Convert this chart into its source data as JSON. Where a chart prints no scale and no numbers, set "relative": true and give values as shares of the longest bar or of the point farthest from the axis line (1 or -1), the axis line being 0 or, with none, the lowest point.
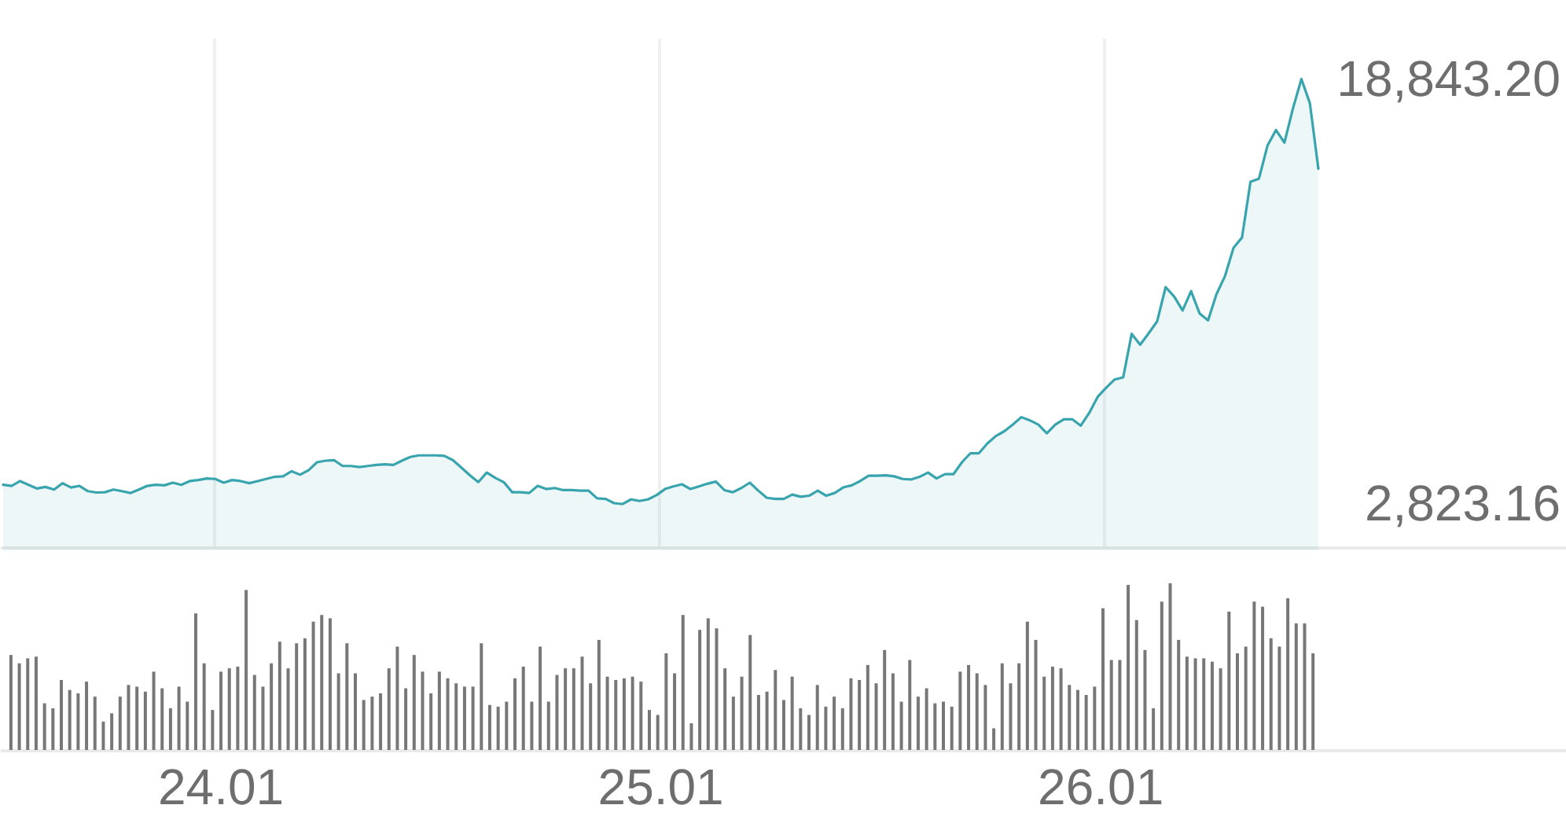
{
  "chart_data": [
    {
      "type": "area",
      "x": [
        "--01-23T12:35:00",
        "--01-23T13:02:30",
        "--01-23T13:30:00",
        "--01-23T13:57:30",
        "--01-23T14:25:00",
        "--01-23T14:52:30",
        "--01-23T15:20:00",
        "--01-23T15:47:30",
        "--01-23T16:15:00",
        "--01-23T16:42:30",
        "--01-23T17:10:00",
        "--01-23T17:37:30",
        "--01-23T18:05:00",
        "--01-23T18:32:30",
        "--01-23T19:00:00",
        "--01-23T19:27:30",
        "--01-23T19:55:00",
        "--01-23T20:22:30",
        "--01-23T20:50:00",
        "--01-23T21:17:30",
        "--01-23T21:45:00",
        "--01-23T22:12:30",
        "--01-23T22:40:00",
        "--01-23T23:07:30",
        "--01-23T23:35:00",
        "--01-24T00:02:30",
        "--01-24T00:30:00",
        "--01-24T00:57:30",
        "--01-24T01:25:00",
        "--01-24T01:52:30",
        "--01-24T02:20:00",
        "--01-24T02:47:30",
        "--01-24T03:15:00",
        "--01-24T03:42:30",
        "--01-24T04:10:00",
        "--01-24T04:37:30",
        "--01-24T05:05:00",
        "--01-24T05:32:30",
        "--01-24T06:00:00",
        "--01-24T06:27:30",
        "--01-24T06:55:00",
        "--01-24T07:22:30",
        "--01-24T07:50:00",
        "--01-24T08:17:30",
        "--01-24T08:45:00",
        "--01-24T09:12:30",
        "--01-24T09:40:00",
        "--01-24T10:07:30",
        "--01-24T10:35:00",
        "--01-24T11:02:30",
        "--01-24T11:30:00",
        "--01-24T11:57:30",
        "--01-24T12:25:00",
        "--01-24T12:52:30",
        "--01-24T13:20:00",
        "--01-24T13:47:30",
        "--01-24T14:15:00",
        "--01-24T14:42:30",
        "--01-24T15:10:00",
        "--01-24T15:37:30",
        "--01-24T16:05:00",
        "--01-24T16:32:30",
        "--01-24T17:00:00",
        "--01-24T17:27:30",
        "--01-24T17:55:00",
        "--01-24T18:22:30",
        "--01-24T18:50:00",
        "--01-24T19:17:30",
        "--01-24T19:45:00",
        "--01-24T20:12:30",
        "--01-24T20:40:00",
        "--01-24T21:07:30",
        "--01-24T21:35:00",
        "--01-24T22:02:30",
        "--01-24T22:30:00",
        "--01-24T22:57:30",
        "--01-24T23:25:00",
        "--01-24T23:52:30",
        "--01-25T00:20:00",
        "--01-25T00:47:30",
        "--01-25T01:15:00",
        "--01-25T01:42:30",
        "--01-25T02:10:00",
        "--01-25T02:37:30",
        "--01-25T03:05:00",
        "--01-25T03:32:30",
        "--01-25T04:00:00",
        "--01-25T04:27:30",
        "--01-25T04:55:00",
        "--01-25T05:22:30",
        "--01-25T05:50:00",
        "--01-25T06:17:30",
        "--01-25T06:45:00",
        "--01-25T07:12:30",
        "--01-25T07:40:00",
        "--01-25T08:07:30",
        "--01-25T08:35:00",
        "--01-25T09:02:30",
        "--01-25T09:30:00",
        "--01-25T09:57:30",
        "--01-25T10:25:00",
        "--01-25T10:52:30",
        "--01-25T11:20:00",
        "--01-25T11:47:30",
        "--01-25T12:15:00",
        "--01-25T12:42:30",
        "--01-25T13:10:00",
        "--01-25T13:37:30",
        "--01-25T14:05:00",
        "--01-25T14:32:30",
        "--01-25T15:00:00",
        "--01-25T15:27:30",
        "--01-25T15:55:00",
        "--01-25T16:22:30",
        "--01-25T16:50:00",
        "--01-25T17:17:30",
        "--01-25T17:45:00",
        "--01-25T18:12:30",
        "--01-25T18:40:00",
        "--01-25T19:07:30",
        "--01-25T19:35:00",
        "--01-25T20:02:30",
        "--01-25T20:30:00",
        "--01-25T20:57:30",
        "--01-25T21:25:00",
        "--01-25T21:52:30",
        "--01-25T22:20:00",
        "--01-25T22:47:30",
        "--01-25T23:15:00",
        "--01-25T23:42:30",
        "--01-26T00:10:00",
        "--01-26T00:37:30",
        "--01-26T01:05:00",
        "--01-26T01:32:30",
        "--01-26T02:00:00",
        "--01-26T02:27:30",
        "--01-26T02:55:00",
        "--01-26T03:22:30",
        "--01-26T03:50:00",
        "--01-26T04:17:30",
        "--01-26T04:45:00",
        "--01-26T05:12:30",
        "--01-26T05:40:00",
        "--01-26T06:07:30",
        "--01-26T06:35:00",
        "--01-26T07:02:30",
        "--01-26T07:30:00",
        "--01-26T07:57:30",
        "--01-26T08:25:00",
        "--01-26T08:52:30",
        "--01-26T09:20:00",
        "--01-26T09:47:30",
        "--01-26T10:15:00",
        "--01-26T10:42:30",
        "--01-26T11:10:00",
        "--01-26T11:37:30"
      ],
      "series": [
        {
          "color": "#38a4ad",
          "values": [
            3550,
            3510,
            3690,
            3550,
            3410,
            3470,
            3370,
            3610,
            3450,
            3510,
            3310,
            3260,
            3270,
            3370,
            3310,
            3240,
            3370,
            3510,
            3550,
            3530,
            3630,
            3550,
            3690,
            3730,
            3790,
            3770,
            3630,
            3730,
            3690,
            3610,
            3690,
            3770,
            3850,
            3870,
            4060,
            3930,
            4100,
            4400,
            4460,
            4480,
            4260,
            4260,
            4220,
            4260,
            4300,
            4320,
            4300,
            4460,
            4600,
            4660,
            4660,
            4660,
            4640,
            4480,
            4200,
            3910,
            3650,
            4010,
            3810,
            3650,
            3270,
            3270,
            3240,
            3510,
            3390,
            3430,
            3350,
            3350,
            3330,
            3330,
            3040,
            3020,
            2860,
            2823.16,
            3000,
            2940,
            3000,
            3160,
            3390,
            3490,
            3570,
            3390,
            3490,
            3590,
            3670,
            3350,
            3270,
            3430,
            3630,
            3330,
            3060,
            3020,
            3020,
            3180,
            3100,
            3140,
            3330,
            3140,
            3240,
            3450,
            3530,
            3690,
            3890,
            3890,
            3910,
            3870,
            3770,
            3750,
            3850,
            4010,
            3790,
            3950,
            3950,
            4400,
            4740,
            4740,
            5110,
            5390,
            5570,
            5820,
            6100,
            5980,
            5820,
            5490,
            5820,
            6020,
            6020,
            5780,
            6260,
            6870,
            7210,
            7520,
            7600,
            9240,
            8830,
            9260,
            9710,
            11000,
            10650,
            10120,
            10850,
            10010,
            9750,
            10740,
            11420,
            12480,
            12870,
            14970,
            15090,
            16330,
            16920,
            16450,
            17730,
            18843.2,
            17930,
            15460
          ]
        }
      ],
      "xlim": [
        "--01-23T12:25",
        "--01-27T01:00"
      ],
      "xticks": [
        {
          "value": "--01-24",
          "label": "24.01"
        },
        {
          "value": "--01-25",
          "label": "25.01"
        },
        {
          "value": "--01-26",
          "label": "26.01"
        }
      ],
      "ylim": [
        1200,
        20400
      ],
      "yticks": [
        {
          "value": 18843.2,
          "label": "18,843.20"
        },
        {
          "value": 2823.16,
          "label": "2,823.16"
        }
      ],
      "grid": "x",
      "tick_labels": "y"
    },
    {
      "type": "bar",
      "relative": true,
      "x": [
        "--01-23T12:35:00",
        "--01-23T13:02:30",
        "--01-23T13:30:00",
        "--01-23T13:57:30",
        "--01-23T14:25:00",
        "--01-23T14:52:30",
        "--01-23T15:20:00",
        "--01-23T15:47:30",
        "--01-23T16:15:00",
        "--01-23T16:42:30",
        "--01-23T17:10:00",
        "--01-23T17:37:30",
        "--01-23T18:05:00",
        "--01-23T18:32:30",
        "--01-23T19:00:00",
        "--01-23T19:27:30",
        "--01-23T19:55:00",
        "--01-23T20:22:30",
        "--01-23T20:50:00",
        "--01-23T21:17:30",
        "--01-23T21:45:00",
        "--01-23T22:12:30",
        "--01-23T22:40:00",
        "--01-23T23:07:30",
        "--01-23T23:35:00",
        "--01-24T00:02:30",
        "--01-24T00:30:00",
        "--01-24T00:57:30",
        "--01-24T01:25:00",
        "--01-24T01:52:30",
        "--01-24T02:20:00",
        "--01-24T02:47:30",
        "--01-24T03:15:00",
        "--01-24T03:42:30",
        "--01-24T04:10:00",
        "--01-24T04:37:30",
        "--01-24T05:05:00",
        "--01-24T05:32:30",
        "--01-24T06:00:00",
        "--01-24T06:27:30",
        "--01-24T06:55:00",
        "--01-24T07:22:30",
        "--01-24T07:50:00",
        "--01-24T08:17:30",
        "--01-24T08:45:00",
        "--01-24T09:12:30",
        "--01-24T09:40:00",
        "--01-24T10:07:30",
        "--01-24T10:35:00",
        "--01-24T11:02:30",
        "--01-24T11:30:00",
        "--01-24T11:57:30",
        "--01-24T12:25:00",
        "--01-24T12:52:30",
        "--01-24T13:20:00",
        "--01-24T13:47:30",
        "--01-24T14:15:00",
        "--01-24T14:42:30",
        "--01-24T15:10:00",
        "--01-24T15:37:30",
        "--01-24T16:05:00",
        "--01-24T16:32:30",
        "--01-24T17:00:00",
        "--01-24T17:27:30",
        "--01-24T17:55:00",
        "--01-24T18:22:30",
        "--01-24T18:50:00",
        "--01-24T19:17:30",
        "--01-24T19:45:00",
        "--01-24T20:12:30",
        "--01-24T20:40:00",
        "--01-24T21:07:30",
        "--01-24T21:35:00",
        "--01-24T22:02:30",
        "--01-24T22:30:00",
        "--01-24T22:57:30",
        "--01-24T23:25:00",
        "--01-24T23:52:30",
        "--01-25T00:20:00",
        "--01-25T00:47:30",
        "--01-25T01:15:00",
        "--01-25T01:42:30",
        "--01-25T02:10:00",
        "--01-25T02:37:30",
        "--01-25T03:05:00",
        "--01-25T03:32:30",
        "--01-25T04:00:00",
        "--01-25T04:27:30",
        "--01-25T04:55:00",
        "--01-25T05:22:30",
        "--01-25T05:50:00",
        "--01-25T06:17:30",
        "--01-25T06:45:00",
        "--01-25T07:12:30",
        "--01-25T07:40:00",
        "--01-25T08:07:30",
        "--01-25T08:35:00",
        "--01-25T09:02:30",
        "--01-25T09:30:00",
        "--01-25T09:57:30",
        "--01-25T10:25:00",
        "--01-25T10:52:30",
        "--01-25T11:20:00",
        "--01-25T11:47:30",
        "--01-25T12:15:00",
        "--01-25T12:42:30",
        "--01-25T13:10:00",
        "--01-25T13:37:30",
        "--01-25T14:05:00",
        "--01-25T14:32:30",
        "--01-25T15:00:00",
        "--01-25T15:27:30",
        "--01-25T15:55:00",
        "--01-25T16:22:30",
        "--01-25T16:50:00",
        "--01-25T17:17:30",
        "--01-25T17:45:00",
        "--01-25T18:12:30",
        "--01-25T18:40:00",
        "--01-25T19:07:30",
        "--01-25T19:35:00",
        "--01-25T20:02:30",
        "--01-25T20:30:00",
        "--01-25T20:57:30",
        "--01-25T21:25:00",
        "--01-25T21:52:30",
        "--01-25T22:20:00",
        "--01-25T22:47:30",
        "--01-25T23:15:00",
        "--01-25T23:42:30",
        "--01-26T00:10:00",
        "--01-26T00:37:30",
        "--01-26T01:05:00",
        "--01-26T01:32:30",
        "--01-26T02:00:00",
        "--01-26T02:27:30",
        "--01-26T02:55:00",
        "--01-26T03:22:30",
        "--01-26T03:50:00",
        "--01-26T04:17:30",
        "--01-26T04:45:00",
        "--01-26T05:12:30",
        "--01-26T05:40:00",
        "--01-26T06:07:30",
        "--01-26T06:35:00",
        "--01-26T07:02:30",
        "--01-26T07:30:00",
        "--01-26T07:57:30",
        "--01-26T08:25:00",
        "--01-26T08:52:30",
        "--01-26T09:20:00",
        "--01-26T09:47:30",
        "--01-26T10:15:00",
        "--01-26T10:42:30",
        "--01-26T11:10:00",
        "--01-26T11:37:30"
      ],
      "series": [
        {
          "color": "#777777",
          "values": [
            0.57,
            0.52,
            0.55,
            0.56,
            0.28,
            0.25,
            0.42,
            0.36,
            0.34,
            0.41,
            0.32,
            0.17,
            0.22,
            0.32,
            0.39,
            0.38,
            0.35,
            0.47,
            0.37,
            0.25,
            0.38,
            0.29,
            0.82,
            0.52,
            0.24,
            0.47,
            0.49,
            0.5,
            0.96,
            0.45,
            0.38,
            0.52,
            0.65,
            0.49,
            0.64,
            0.67,
            0.77,
            0.81,
            0.79,
            0.46,
            0.64,
            0.46,
            0.3,
            0.32,
            0.34,
            0.49,
            0.62,
            0.37,
            0.57,
            0.47,
            0.34,
            0.47,
            0.43,
            0.4,
            0.38,
            0.38,
            0.64,
            0.27,
            0.26,
            0.29,
            0.43,
            0.5,
            0.29,
            0.62,
            0.29,
            0.45,
            0.49,
            0.49,
            0.56,
            0.4,
            0.66,
            0.44,
            0.42,
            0.43,
            0.44,
            0.41,
            0.24,
            0.21,
            0.58,
            0.46,
            0.81,
            0.16,
            0.72,
            0.79,
            0.73,
            0.49,
            0.32,
            0.44,
            0.69,
            0.33,
            0.35,
            0.48,
            0.3,
            0.44,
            0.25,
            0.21,
            0.39,
            0.26,
            0.32,
            0.25,
            0.43,
            0.42,
            0.51,
            0.4,
            0.6,
            0.46,
            0.29,
            0.54,
            0.32,
            0.37,
            0.28,
            0.29,
            0.26,
            0.47,
            0.51,
            0.46,
            0.39,
            0.13,
            0.52,
            0.4,
            0.52,
            0.77,
            0.66,
            0.44,
            0.5,
            0.49,
            0.39,
            0.36,
            0.33,
            0.38,
            0.85,
            0.54,
            0.54,
            0.99,
            0.78,
            0.6,
            0.25,
            0.89,
            1,
            0.66,
            0.56,
            0.55,
            0.55,
            0.53,
            0.49,
            0.83,
            0.58,
            0.62,
            0.89,
            0.86,
            0.67,
            0.62,
            0.91,
            0.76,
            0.76,
            0.58
          ]
        }
      ],
      "xlim": [
        "--01-23T12:25",
        "--01-27T01:00"
      ],
      "xticks": [
        {
          "value": "--01-24",
          "label": "24.01"
        },
        {
          "value": "--01-25",
          "label": "25.01"
        },
        {
          "value": "--01-26",
          "label": "26.01"
        }
      ]
    }
  ]
}
